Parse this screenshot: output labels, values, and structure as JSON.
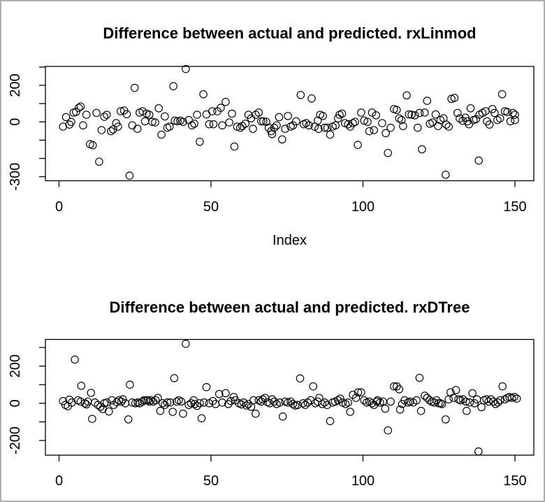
{
  "page": {
    "background": "#ffffff",
    "border_color": "#b0b0b0",
    "text_color": "#000000"
  },
  "chart_data": [
    {
      "type": "scatter",
      "title": "Difference between actual and predicted. rxLinmod",
      "xlabel": "Index",
      "ylabel": "",
      "marker": "open-circle",
      "point_color": "#000000",
      "grid": false,
      "legend": "none",
      "x_ticks": [
        0,
        50,
        100,
        150
      ],
      "y_ticks": [
        300,
        200,
        100,
        0,
        -100,
        -200,
        -300
      ],
      "y_tick_labels_shown": [
        200,
        0,
        -300
      ],
      "xlim": [
        -4.5,
        156
      ],
      "ylim": [
        -322,
        303
      ],
      "points": [
        [
          1.3,
          -26
        ],
        [
          2.3,
          26
        ],
        [
          3.4,
          -15
        ],
        [
          4,
          0
        ],
        [
          4.8,
          51
        ],
        [
          5.6,
          54
        ],
        [
          6.5,
          77
        ],
        [
          7.1,
          84
        ],
        [
          7.9,
          -19
        ],
        [
          9,
          39
        ],
        [
          10.2,
          -122
        ],
        [
          11.1,
          -128
        ],
        [
          12.3,
          49
        ],
        [
          13.2,
          -218
        ],
        [
          14,
          -45
        ],
        [
          14.9,
          28
        ],
        [
          15.7,
          39
        ],
        [
          17.1,
          -51
        ],
        [
          17.8,
          -41
        ],
        [
          18.8,
          -7
        ],
        [
          19.4,
          -26
        ],
        [
          20.3,
          58
        ],
        [
          21.4,
          62
        ],
        [
          22.3,
          42
        ],
        [
          23.2,
          -294
        ],
        [
          24.1,
          -19
        ],
        [
          24.9,
          186
        ],
        [
          25.8,
          -38
        ],
        [
          26.5,
          51
        ],
        [
          27.5,
          58
        ],
        [
          28.3,
          3
        ],
        [
          28.8,
          45
        ],
        [
          29.7,
          39
        ],
        [
          30.7,
          0
        ],
        [
          31.6,
          -3
        ],
        [
          32.8,
          74
        ],
        [
          33.7,
          -70
        ],
        [
          34.8,
          30
        ],
        [
          35.6,
          -32
        ],
        [
          36.4,
          -26
        ],
        [
          37.6,
          195
        ],
        [
          38.1,
          7
        ],
        [
          39,
          3
        ],
        [
          39.9,
          7
        ],
        [
          40.8,
          0
        ],
        [
          41.7,
          289
        ],
        [
          42.7,
          10
        ],
        [
          43.7,
          -19
        ],
        [
          44.5,
          -10
        ],
        [
          45.4,
          39
        ],
        [
          46.3,
          -109
        ],
        [
          47.5,
          151
        ],
        [
          48.5,
          41
        ],
        [
          49.4,
          -13
        ],
        [
          50.4,
          58
        ],
        [
          50.8,
          -13
        ],
        [
          52.1,
          58
        ],
        [
          53.2,
          77
        ],
        [
          53.7,
          -19
        ],
        [
          54.8,
          109
        ],
        [
          56,
          -3
        ],
        [
          56.9,
          45
        ],
        [
          57.7,
          -135
        ],
        [
          58.6,
          -26
        ],
        [
          59.6,
          -32
        ],
        [
          60.3,
          -23
        ],
        [
          61.3,
          -10
        ],
        [
          62.3,
          39
        ],
        [
          63.2,
          19
        ],
        [
          63.8,
          -38
        ],
        [
          64.7,
          39
        ],
        [
          65.7,
          51
        ],
        [
          66.5,
          3
        ],
        [
          67.2,
          3
        ],
        [
          68.2,
          0
        ],
        [
          69,
          -32
        ],
        [
          69.8,
          -51
        ],
        [
          70.1,
          -67
        ],
        [
          70.8,
          -32
        ],
        [
          71.6,
          -19
        ],
        [
          72.4,
          26
        ],
        [
          73.4,
          -96
        ],
        [
          74.4,
          -38
        ],
        [
          75.3,
          32
        ],
        [
          76.2,
          -26
        ],
        [
          77,
          -19
        ],
        [
          78,
          3
        ],
        [
          79.5,
          147
        ],
        [
          80.5,
          -13
        ],
        [
          81.3,
          -7
        ],
        [
          82.2,
          -19
        ],
        [
          83.1,
          128
        ],
        [
          84.1,
          -26
        ],
        [
          85.1,
          7
        ],
        [
          85.4,
          -38
        ],
        [
          85.9,
          39
        ],
        [
          86.8,
          32
        ],
        [
          87.4,
          -32
        ],
        [
          88.3,
          -32
        ],
        [
          89.2,
          -70
        ],
        [
          90,
          -26
        ],
        [
          91,
          -19
        ],
        [
          91.8,
          19
        ],
        [
          92.3,
          39
        ],
        [
          93.1,
          45
        ],
        [
          94.1,
          -7
        ],
        [
          95.1,
          -13
        ],
        [
          95.8,
          -26
        ],
        [
          96.7,
          -7
        ],
        [
          97.4,
          0
        ],
        [
          98.3,
          -126
        ],
        [
          99.4,
          51
        ],
        [
          100.4,
          7
        ],
        [
          101.5,
          0
        ],
        [
          102.1,
          -51
        ],
        [
          103,
          51
        ],
        [
          103.6,
          -45
        ],
        [
          104.3,
          36
        ],
        [
          106.3,
          -7
        ],
        [
          107.5,
          -62
        ],
        [
          108.2,
          -170
        ],
        [
          109.1,
          -32
        ],
        [
          110.2,
          70
        ],
        [
          111.1,
          65
        ],
        [
          111.9,
          19
        ],
        [
          112.7,
          10
        ],
        [
          113.2,
          -23
        ],
        [
          114.4,
          145
        ],
        [
          115.1,
          41
        ],
        [
          116,
          39
        ],
        [
          117.1,
          36
        ],
        [
          118,
          -32
        ],
        [
          118.6,
          49
        ],
        [
          119.4,
          -150
        ],
        [
          120.3,
          51
        ],
        [
          121.1,
          115
        ],
        [
          122,
          -10
        ],
        [
          122.9,
          -3
        ],
        [
          123.9,
          41
        ],
        [
          124.7,
          -23
        ],
        [
          125.5,
          10
        ],
        [
          126.5,
          19
        ],
        [
          127.2,
          -289
        ],
        [
          127.4,
          -15
        ],
        [
          128.2,
          -26
        ],
        [
          129.1,
          126
        ],
        [
          130.1,
          131
        ],
        [
          131.1,
          49
        ],
        [
          131.8,
          19
        ],
        [
          132.8,
          6
        ],
        [
          133.7,
          23
        ],
        [
          134.4,
          3
        ],
        [
          134.9,
          -13
        ],
        [
          135.4,
          74
        ],
        [
          136.4,
          10
        ],
        [
          137.2,
          15
        ],
        [
          138.1,
          -212
        ],
        [
          138.3,
          39
        ],
        [
          139.3,
          49
        ],
        [
          140.3,
          58
        ],
        [
          140.8,
          3
        ],
        [
          141.6,
          -15
        ],
        [
          142.6,
          70
        ],
        [
          143.3,
          49
        ],
        [
          144.2,
          10
        ],
        [
          145.1,
          19
        ],
        [
          145.8,
          151
        ],
        [
          146.7,
          58
        ],
        [
          147.5,
          54
        ],
        [
          148.5,
          3
        ],
        [
          149.3,
          49
        ],
        [
          150,
          10
        ],
        [
          150,
          39
        ]
      ]
    },
    {
      "type": "scatter",
      "title": "Difference between actual and predicted. rxDTree",
      "xlabel": "",
      "ylabel": "",
      "marker": "open-circle",
      "point_color": "#000000",
      "grid": false,
      "legend": "none",
      "x_ticks": [
        0,
        50,
        100,
        150
      ],
      "y_ticks": [
        300,
        200,
        100,
        0,
        -100,
        -200
      ],
      "y_tick_labels_shown": [
        200,
        0,
        -200
      ],
      "xlim": [
        -4.5,
        156
      ],
      "ylim": [
        -279,
        343
      ],
      "points": [
        [
          1.3,
          12
        ],
        [
          2.1,
          -9
        ],
        [
          2.9,
          -16
        ],
        [
          3.4,
          19
        ],
        [
          4.2,
          4
        ],
        [
          5.2,
          235
        ],
        [
          6.2,
          16
        ],
        [
          7.1,
          9
        ],
        [
          7.3,
          94
        ],
        [
          8.5,
          0
        ],
        [
          9,
          -6
        ],
        [
          9.5,
          9
        ],
        [
          10.5,
          56
        ],
        [
          10.9,
          -84
        ],
        [
          11.8,
          4
        ],
        [
          12.8,
          -9
        ],
        [
          13.6,
          -19
        ],
        [
          14.4,
          -31
        ],
        [
          14.9,
          0
        ],
        [
          15.7,
          4
        ],
        [
          16.4,
          -44
        ],
        [
          17.4,
          16
        ],
        [
          18,
          -9
        ],
        [
          19,
          6
        ],
        [
          19.7,
          16
        ],
        [
          20.5,
          9
        ],
        [
          21,
          21
        ],
        [
          21.8,
          0
        ],
        [
          22.8,
          -87
        ],
        [
          23.3,
          100
        ],
        [
          24.1,
          4
        ],
        [
          25.1,
          0
        ],
        [
          25.9,
          4
        ],
        [
          26.6,
          0
        ],
        [
          27.4,
          9
        ],
        [
          27.9,
          16
        ],
        [
          28.6,
          16
        ],
        [
          29.2,
          16
        ],
        [
          29.7,
          9
        ],
        [
          30.2,
          16
        ],
        [
          31,
          9
        ],
        [
          31.8,
          16
        ],
        [
          32.5,
          29
        ],
        [
          33.3,
          -41
        ],
        [
          34.1,
          0
        ],
        [
          34.8,
          -9
        ],
        [
          35.6,
          4
        ],
        [
          36.6,
          4
        ],
        [
          37.4,
          -46
        ],
        [
          37.9,
          135
        ],
        [
          38.7,
          9
        ],
        [
          39.4,
          16
        ],
        [
          40.2,
          9
        ],
        [
          40.8,
          -56
        ],
        [
          41.7,
          320
        ],
        [
          42.7,
          -9
        ],
        [
          43.5,
          0
        ],
        [
          44.3,
          16
        ],
        [
          44.6,
          -4
        ],
        [
          45.4,
          -14
        ],
        [
          46.3,
          0
        ],
        [
          46.9,
          -81
        ],
        [
          47.7,
          4
        ],
        [
          48.5,
          87
        ],
        [
          49.4,
          0
        ],
        [
          50.6,
          12
        ],
        [
          51.5,
          -4
        ],
        [
          52.7,
          50
        ],
        [
          53.7,
          4
        ],
        [
          54.8,
          54
        ],
        [
          55.7,
          -4
        ],
        [
          56.5,
          12
        ],
        [
          57.5,
          34
        ],
        [
          58,
          16
        ],
        [
          59.2,
          0
        ],
        [
          60,
          -6
        ],
        [
          60.7,
          4
        ],
        [
          61.7,
          -12
        ],
        [
          62.3,
          -4
        ],
        [
          63.2,
          -19
        ],
        [
          64,
          16
        ],
        [
          64.7,
          -56
        ],
        [
          65.7,
          16
        ],
        [
          66.5,
          9
        ],
        [
          67,
          21
        ],
        [
          67.8,
          29
        ],
        [
          68.6,
          6
        ],
        [
          69.3,
          0
        ],
        [
          70.1,
          21
        ],
        [
          70.8,
          9
        ],
        [
          71.6,
          -4
        ],
        [
          72.6,
          4
        ],
        [
          73.6,
          -71
        ],
        [
          74.4,
          9
        ],
        [
          75.3,
          4
        ],
        [
          76.2,
          9
        ],
        [
          77,
          -4
        ],
        [
          77.7,
          -12
        ],
        [
          78.5,
          -9
        ],
        [
          79.3,
          134
        ],
        [
          80.3,
          0
        ],
        [
          81,
          -9
        ],
        [
          81.8,
          4
        ],
        [
          82.8,
          16
        ],
        [
          83.6,
          91
        ],
        [
          84.3,
          0
        ],
        [
          85.1,
          9
        ],
        [
          85.6,
          29
        ],
        [
          86.6,
          -4
        ],
        [
          87.4,
          4
        ],
        [
          88.2,
          -9
        ],
        [
          89.2,
          -96
        ],
        [
          90,
          4
        ],
        [
          90.8,
          9
        ],
        [
          91.8,
          16
        ],
        [
          92.5,
          25
        ],
        [
          93.3,
          4
        ],
        [
          94.3,
          -4
        ],
        [
          95.1,
          4
        ],
        [
          95.8,
          -46
        ],
        [
          96.7,
          46
        ],
        [
          97.7,
          29
        ],
        [
          98.4,
          59
        ],
        [
          99.4,
          59
        ],
        [
          100.4,
          16
        ],
        [
          101.2,
          4
        ],
        [
          102.1,
          9
        ],
        [
          103,
          0
        ],
        [
          103.6,
          -9
        ],
        [
          104.6,
          9
        ],
        [
          104.8,
          16
        ],
        [
          105.6,
          4
        ],
        [
          106.6,
          9
        ],
        [
          107.3,
          -29
        ],
        [
          108.2,
          -146
        ],
        [
          109.1,
          9
        ],
        [
          110.2,
          91
        ],
        [
          111.1,
          91
        ],
        [
          111.9,
          75
        ],
        [
          112.2,
          -34
        ],
        [
          112.9,
          -4
        ],
        [
          113.7,
          16
        ],
        [
          114.8,
          4
        ],
        [
          115.5,
          9
        ],
        [
          116.5,
          4
        ],
        [
          117.6,
          16
        ],
        [
          118.6,
          137
        ],
        [
          119.1,
          -41
        ],
        [
          120.3,
          41
        ],
        [
          121.1,
          29
        ],
        [
          121.9,
          16
        ],
        [
          122.6,
          9
        ],
        [
          123.4,
          4
        ],
        [
          124.2,
          16
        ],
        [
          124.9,
          0
        ],
        [
          125.5,
          0
        ],
        [
          126,
          -4
        ],
        [
          127.2,
          -87
        ],
        [
          128.2,
          21
        ],
        [
          128.8,
          59
        ],
        [
          129.8,
          29
        ],
        [
          130.6,
          71
        ],
        [
          131.4,
          21
        ],
        [
          132.1,
          16
        ],
        [
          132.9,
          21
        ],
        [
          133.9,
          9
        ],
        [
          134.1,
          -41
        ],
        [
          135.1,
          4
        ],
        [
          136,
          54
        ],
        [
          136.7,
          0
        ],
        [
          137.5,
          21
        ],
        [
          138,
          -259
        ],
        [
          139,
          -21
        ],
        [
          139.8,
          16
        ],
        [
          140.6,
          21
        ],
        [
          141.3,
          9
        ],
        [
          142.1,
          21
        ],
        [
          142.9,
          9
        ],
        [
          143.6,
          -4
        ],
        [
          144.4,
          4
        ],
        [
          145.1,
          16
        ],
        [
          145.9,
          91
        ],
        [
          146.7,
          21
        ],
        [
          147.5,
          29
        ],
        [
          148.2,
          34
        ],
        [
          149,
          29
        ],
        [
          149.8,
          34
        ],
        [
          150.6,
          25
        ]
      ]
    }
  ]
}
